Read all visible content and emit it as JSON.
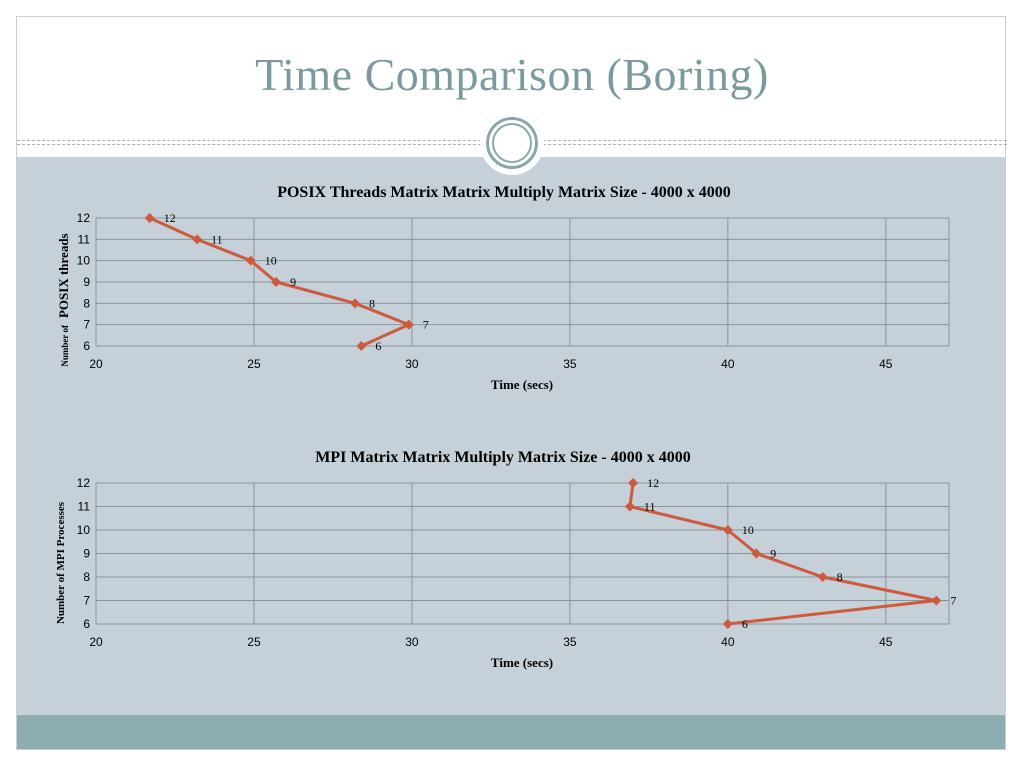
{
  "slide": {
    "title": "Time Comparison (Boring)",
    "colors": {
      "title": "#7a9a9e",
      "panel": "#c5d0d8",
      "footer": "#8daeb0",
      "series": "#cd5a3c",
      "grid": "#8a949c"
    }
  },
  "chart_data": [
    {
      "type": "line",
      "title": "POSIX Threads Matrix Matrix Multiply Matrix Size - 4000 x 4000",
      "xlabel": "Time (secs)",
      "ylabel_small": "Number of",
      "ylabel_big": "POSIX threads",
      "xlim": [
        20,
        47
      ],
      "ylim": [
        6,
        12
      ],
      "xticks": [
        "20",
        "25",
        "30",
        "35",
        "40",
        "45"
      ],
      "yticks": [
        "6",
        "7",
        "8",
        "9",
        "10",
        "11",
        "12"
      ],
      "grid": true,
      "series": [
        {
          "x": [
            21.7,
            23.2,
            24.9,
            25.7,
            28.2,
            29.9,
            28.4
          ],
          "y": [
            12,
            11,
            10,
            9,
            8,
            7,
            6
          ],
          "labels": [
            "12",
            "11",
            "10",
            "9",
            "8",
            "7",
            "6"
          ]
        }
      ]
    },
    {
      "type": "line",
      "title": "MPI Matrix Matrix Multiply Matrix Size - 4000 x 4000",
      "xlabel": "Time  (secs)",
      "ylabel_small": "",
      "ylabel_big": "Number of MPI Processes",
      "xlim": [
        20,
        47
      ],
      "ylim": [
        6,
        12
      ],
      "xticks": [
        "20",
        "25",
        "30",
        "35",
        "40",
        "45"
      ],
      "yticks": [
        "6",
        "7",
        "8",
        "9",
        "10",
        "11",
        "12"
      ],
      "grid": true,
      "series": [
        {
          "x": [
            37.0,
            36.9,
            40.0,
            40.9,
            43.0,
            46.6,
            40.0
          ],
          "y": [
            12,
            11,
            10,
            9,
            8,
            7,
            6
          ],
          "labels": [
            "12",
            "11",
            "10",
            "9",
            "8",
            "7",
            "6"
          ]
        }
      ]
    }
  ]
}
